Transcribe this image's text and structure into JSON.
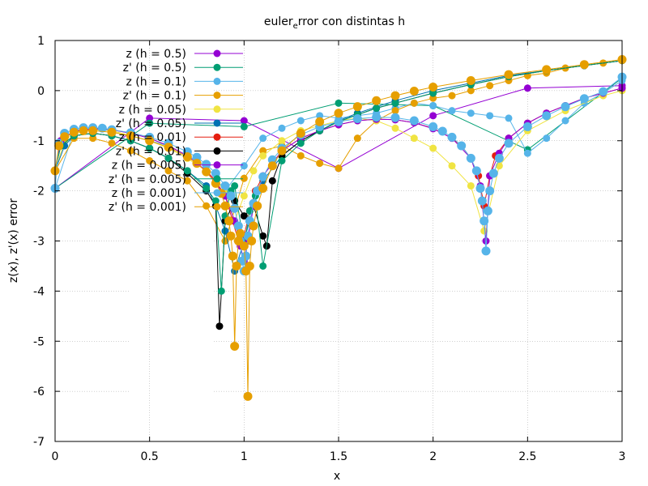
{
  "chart_data": {
    "type": "line",
    "title": "euler",
    "title_subscript": "e",
    "title_rest": "rror con distintas h",
    "xlabel": "x",
    "ylabel": "z(x), z'(x) error",
    "xlim": [
      0,
      3
    ],
    "ylim": [
      -7,
      1
    ],
    "xticks": [
      "0",
      "0.5",
      "1",
      "1.5",
      "2",
      "2.5",
      "3"
    ],
    "yticks": [
      "1",
      "0",
      "-1",
      "-2",
      "-3",
      "-4",
      "-5",
      "-6",
      "-7"
    ],
    "grid": true,
    "legend_position": "top-left",
    "series": [
      {
        "name": "z (h = 0.5)",
        "color": "#9400d3",
        "x": [
          0,
          0.5,
          1,
          1.5,
          2,
          2.5,
          3
        ],
        "y": [
          -1.95,
          -0.55,
          -0.6,
          -1.55,
          -0.5,
          0.05,
          0.1
        ]
      },
      {
        "name": "z' (h = 0.5)",
        "color": "#009e73",
        "x": [
          0,
          0.5,
          1,
          1.5,
          2,
          2.5,
          3
        ],
        "y": [
          -1.95,
          -0.65,
          -0.72,
          -0.25,
          -0.3,
          -1.18,
          0.25
        ]
      },
      {
        "name": "z (h = 0.1)",
        "color": "#56b4e9",
        "x": [
          0,
          0.1,
          0.2,
          0.3,
          0.4,
          0.5,
          0.6,
          0.7,
          0.8,
          0.9,
          1.0,
          1.1,
          1.2,
          1.3,
          1.4,
          1.5,
          1.6,
          1.7,
          1.8,
          1.9,
          2.0,
          2.1,
          2.2,
          2.3,
          2.4,
          2.5,
          2.6,
          2.7,
          2.8,
          2.9,
          3.0
        ],
        "y": [
          -1.95,
          -0.8,
          -0.75,
          -0.8,
          -0.9,
          -1.0,
          -1.1,
          -1.3,
          -1.5,
          -2.0,
          -1.5,
          -0.95,
          -0.75,
          -0.6,
          -0.5,
          -0.55,
          -0.5,
          -0.45,
          -0.35,
          -0.25,
          -0.3,
          -0.4,
          -0.45,
          -0.5,
          -0.55,
          -1.25,
          -0.95,
          -0.6,
          -0.25,
          -0.05,
          0.2
        ]
      },
      {
        "name": "z' (h = 0.1)",
        "color": "#e69f00",
        "x": [
          0,
          0.1,
          0.2,
          0.3,
          0.4,
          0.5,
          0.6,
          0.7,
          0.8,
          0.9,
          1.0,
          1.1,
          1.2,
          1.3,
          1.4,
          1.5,
          1.6,
          1.7,
          1.8,
          1.9,
          2.0,
          2.1,
          2.2,
          2.3,
          2.4,
          2.5,
          2.6,
          2.7,
          2.8,
          2.9,
          3.0
        ],
        "y": [
          -1.6,
          -0.95,
          -0.95,
          -1.05,
          -1.2,
          -1.4,
          -1.6,
          -1.8,
          -2.3,
          -3.0,
          -1.75,
          -1.2,
          -1.1,
          -1.3,
          -1.45,
          -1.55,
          -0.95,
          -0.6,
          -0.4,
          -0.25,
          -0.15,
          -0.1,
          0.0,
          0.1,
          0.2,
          0.3,
          0.35,
          0.45,
          0.5,
          0.55,
          0.6
        ]
      },
      {
        "name": "z (h = 0.05)",
        "color": "#f0e442",
        "x": [
          0,
          0.05,
          0.1,
          0.2,
          0.3,
          0.4,
          0.5,
          0.6,
          0.7,
          0.8,
          0.9,
          0.95,
          1.0,
          1.05,
          1.1,
          1.2,
          1.3,
          1.4,
          1.5,
          1.6,
          1.7,
          1.8,
          1.9,
          2.0,
          2.1,
          2.2,
          2.27,
          2.35,
          2.5,
          2.7,
          2.9,
          3.0
        ],
        "y": [
          -1.6,
          -1.0,
          -0.85,
          -0.78,
          -0.8,
          -0.9,
          -1.0,
          -1.15,
          -1.35,
          -1.6,
          -2.0,
          -2.6,
          -2.1,
          -1.6,
          -1.3,
          -1.0,
          -0.8,
          -0.7,
          -0.6,
          -0.55,
          -0.6,
          -0.75,
          -0.95,
          -1.15,
          -1.5,
          -1.9,
          -2.8,
          -1.5,
          -0.8,
          -0.4,
          -0.1,
          0.0
        ]
      },
      {
        "name": "z' (h = 0.05)",
        "color": "#0072b2",
        "x": [
          0,
          0.05,
          0.1,
          0.2,
          0.3,
          0.4,
          0.5,
          0.6,
          0.7,
          0.8,
          0.85,
          0.9,
          0.95,
          1.0,
          1.05,
          1.1,
          1.2,
          1.3,
          1.4,
          1.5,
          1.6,
          1.8,
          2.0,
          2.2,
          2.4,
          2.6,
          2.8,
          3.0
        ],
        "y": [
          -1.6,
          -1.1,
          -0.9,
          -0.85,
          -0.9,
          -1.0,
          -1.15,
          -1.35,
          -1.6,
          -1.9,
          -2.3,
          -2.8,
          -3.6,
          -3.0,
          -2.3,
          -1.8,
          -1.3,
          -1.0,
          -0.8,
          -0.6,
          -0.45,
          -0.2,
          0.0,
          0.15,
          0.3,
          0.4,
          0.5,
          0.6
        ]
      },
      {
        "name": "z (h = 0.01)",
        "color": "#e51e10",
        "x": [
          0,
          0.03,
          0.1,
          0.2,
          0.3,
          0.4,
          0.5,
          0.6,
          0.7,
          0.8,
          0.85,
          0.9,
          0.94,
          0.97,
          1.0,
          1.03,
          1.06,
          1.1,
          1.2,
          1.3,
          1.4,
          1.5,
          1.6,
          1.7,
          1.8,
          1.9,
          2.0,
          2.1,
          2.15,
          2.2,
          2.24,
          2.27,
          2.3,
          2.33,
          2.4,
          2.5,
          2.6,
          2.7,
          2.8,
          2.9,
          3.0
        ],
        "y": [
          -1.6,
          -1.0,
          -0.82,
          -0.76,
          -0.78,
          -0.85,
          -0.95,
          -1.1,
          -1.3,
          -1.6,
          -1.8,
          -2.1,
          -2.6,
          -3.0,
          -2.9,
          -2.4,
          -2.0,
          -1.7,
          -1.2,
          -0.95,
          -0.8,
          -0.68,
          -0.6,
          -0.57,
          -0.58,
          -0.64,
          -0.75,
          -0.95,
          -1.1,
          -1.35,
          -1.7,
          -2.3,
          -1.7,
          -1.3,
          -0.95,
          -0.65,
          -0.45,
          -0.3,
          -0.15,
          -0.05,
          0.05
        ]
      },
      {
        "name": "z' (h = 0.01)",
        "color": "#000000",
        "x": [
          0,
          0.03,
          0.1,
          0.2,
          0.3,
          0.4,
          0.5,
          0.6,
          0.7,
          0.8,
          0.85,
          0.87,
          0.9,
          0.95,
          1.0,
          1.05,
          1.1,
          1.12,
          1.15,
          1.2,
          1.3,
          1.4,
          1.5,
          1.6,
          1.7,
          1.8,
          2.0,
          2.2,
          2.4,
          2.6,
          2.8,
          3.0
        ],
        "y": [
          -1.6,
          -1.1,
          -0.9,
          -0.85,
          -0.9,
          -1.0,
          -1.15,
          -1.35,
          -1.65,
          -2.0,
          -2.3,
          -4.7,
          -2.6,
          -2.2,
          -2.5,
          -2.3,
          -2.9,
          -3.1,
          -1.8,
          -1.3,
          -1.0,
          -0.8,
          -0.62,
          -0.48,
          -0.35,
          -0.25,
          -0.05,
          0.12,
          0.28,
          0.4,
          0.5,
          0.6
        ]
      },
      {
        "name": "z (h = 0.005)",
        "color": "#9400d3",
        "x": [
          0,
          0.03,
          0.1,
          0.2,
          0.3,
          0.4,
          0.5,
          0.6,
          0.7,
          0.8,
          0.9,
          0.95,
          0.98,
          1.0,
          1.02,
          1.05,
          1.1,
          1.2,
          1.3,
          1.4,
          1.5,
          1.6,
          1.7,
          1.8,
          1.9,
          2.0,
          2.1,
          2.2,
          2.25,
          2.28,
          2.3,
          2.35,
          2.4,
          2.5,
          2.6,
          2.7,
          2.8,
          2.9,
          3.0
        ],
        "y": [
          -1.6,
          -1.0,
          -0.8,
          -0.76,
          -0.78,
          -0.85,
          -0.95,
          -1.1,
          -1.3,
          -1.6,
          -2.1,
          -2.6,
          -3.1,
          -3.4,
          -3.0,
          -2.3,
          -1.7,
          -1.2,
          -0.95,
          -0.8,
          -0.68,
          -0.6,
          -0.57,
          -0.58,
          -0.64,
          -0.76,
          -0.95,
          -1.35,
          -1.9,
          -3.0,
          -1.7,
          -1.25,
          -0.95,
          -0.65,
          -0.45,
          -0.3,
          -0.15,
          -0.05,
          0.05
        ]
      },
      {
        "name": "z' (h = 0.005)",
        "color": "#009e73",
        "x": [
          0,
          0.03,
          0.1,
          0.2,
          0.3,
          0.4,
          0.5,
          0.6,
          0.7,
          0.8,
          0.85,
          0.88,
          0.9,
          0.93,
          0.95,
          1.0,
          1.03,
          1.06,
          1.1,
          1.2,
          1.3,
          1.4,
          1.5,
          1.6,
          1.7,
          1.8,
          2.0,
          2.2,
          2.4,
          2.6,
          2.8,
          3.0
        ],
        "y": [
          -1.6,
          -1.1,
          -0.9,
          -0.85,
          -0.9,
          -1.0,
          -1.15,
          -1.35,
          -1.6,
          -1.95,
          -2.2,
          -4.0,
          -2.5,
          -2.0,
          -1.9,
          -3.1,
          -2.4,
          -2.1,
          -3.5,
          -1.4,
          -1.05,
          -0.8,
          -0.62,
          -0.48,
          -0.35,
          -0.25,
          -0.05,
          0.12,
          0.28,
          0.4,
          0.5,
          0.6
        ]
      },
      {
        "name": "z (h = 0.001)",
        "color": "#56b4e9",
        "x": [
          0,
          0.02,
          0.05,
          0.1,
          0.15,
          0.2,
          0.25,
          0.3,
          0.4,
          0.5,
          0.6,
          0.7,
          0.75,
          0.8,
          0.85,
          0.9,
          0.93,
          0.95,
          0.97,
          0.98,
          0.99,
          1.0,
          1.01,
          1.02,
          1.03,
          1.05,
          1.07,
          1.1,
          1.15,
          1.2,
          1.3,
          1.4,
          1.5,
          1.6,
          1.7,
          1.8,
          1.9,
          2.0,
          2.05,
          2.1,
          2.15,
          2.2,
          2.23,
          2.25,
          2.26,
          2.27,
          2.28,
          2.29,
          2.3,
          2.32,
          2.35,
          2.4,
          2.5,
          2.6,
          2.7,
          2.8,
          2.9,
          3.0
        ],
        "y": [
          -1.95,
          -1.05,
          -0.85,
          -0.77,
          -0.74,
          -0.74,
          -0.75,
          -0.78,
          -0.84,
          -0.93,
          -1.05,
          -1.22,
          -1.33,
          -1.47,
          -1.65,
          -1.9,
          -2.1,
          -2.35,
          -2.7,
          -3.0,
          -3.4,
          -3.6,
          -3.3,
          -2.9,
          -2.6,
          -2.25,
          -2.0,
          -1.72,
          -1.38,
          -1.15,
          -0.88,
          -0.72,
          -0.62,
          -0.56,
          -0.53,
          -0.54,
          -0.6,
          -0.72,
          -0.81,
          -0.93,
          -1.1,
          -1.35,
          -1.6,
          -1.95,
          -2.2,
          -2.6,
          -3.2,
          -2.4,
          -2.0,
          -1.65,
          -1.35,
          -1.05,
          -0.72,
          -0.5,
          -0.32,
          -0.16,
          -0.02,
          0.27
        ]
      },
      {
        "name": "z' (h = 0.001)",
        "color": "#e69f00",
        "x": [
          0,
          0.02,
          0.05,
          0.1,
          0.15,
          0.2,
          0.3,
          0.4,
          0.5,
          0.6,
          0.7,
          0.75,
          0.8,
          0.85,
          0.88,
          0.9,
          0.92,
          0.93,
          0.94,
          0.95,
          0.96,
          0.97,
          0.98,
          1.0,
          1.01,
          1.02,
          1.03,
          1.04,
          1.05,
          1.07,
          1.1,
          1.15,
          1.2,
          1.3,
          1.4,
          1.5,
          1.6,
          1.7,
          1.8,
          1.9,
          2.0,
          2.2,
          2.4,
          2.6,
          2.8,
          3.0
        ],
        "y": [
          -1.6,
          -1.1,
          -0.92,
          -0.83,
          -0.8,
          -0.8,
          -0.83,
          -0.9,
          -1.0,
          -1.13,
          -1.32,
          -1.45,
          -1.62,
          -1.85,
          -2.05,
          -2.3,
          -2.6,
          -2.9,
          -3.3,
          -5.1,
          -3.5,
          -3.0,
          -2.85,
          -3.1,
          -3.6,
          -6.1,
          -3.5,
          -3.0,
          -2.7,
          -2.3,
          -1.95,
          -1.5,
          -1.2,
          -0.85,
          -0.62,
          -0.45,
          -0.32,
          -0.2,
          -0.1,
          -0.01,
          0.07,
          0.2,
          0.32,
          0.42,
          0.52,
          0.62
        ]
      }
    ]
  }
}
